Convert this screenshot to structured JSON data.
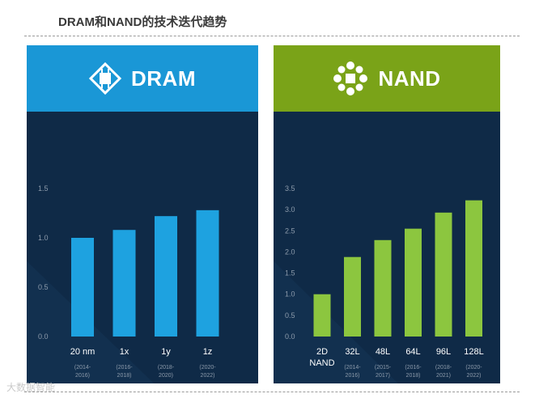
{
  "page": {
    "title": "DRAM和NAND的技术迭代趋势",
    "watermark": "大数据智能"
  },
  "colors": {
    "panel_bg": "#0f2a47",
    "dram_header": "#1a97d6",
    "dram_bar": "#1ea2e0",
    "nand_header": "#7aa318",
    "nand_bar": "#8cc63f",
    "axis_text": "#8d9bab",
    "label_text": "#ffffff"
  },
  "icons": {
    "dram": "dram-chip-icon",
    "nand": "nand-flower-icon"
  },
  "chart_data": [
    {
      "type": "bar",
      "title": "DRAM",
      "categories": [
        "20 nm",
        "1x",
        "1y",
        "1z"
      ],
      "sublabels": [
        [
          "(2014-",
          "2016)"
        ],
        [
          "(2016-",
          "2018)"
        ],
        [
          "(2018-",
          "2020)"
        ],
        [
          "(2020-",
          "2022)"
        ]
      ],
      "values": [
        1.0,
        1.08,
        1.22,
        1.28
      ],
      "ylim": [
        0,
        1.5
      ],
      "yticks": [
        "0.0",
        "0.5",
        "1.0",
        "1.5"
      ],
      "xlabel": "",
      "ylabel": "",
      "grid": false
    },
    {
      "type": "bar",
      "title": "NAND",
      "categories": [
        [
          "2D",
          "NAND"
        ],
        "32L",
        "48L",
        "64L",
        "96L",
        "128L"
      ],
      "sublabels": [
        [],
        [
          "(2014-",
          "2016)"
        ],
        [
          "(2015-",
          "2017)"
        ],
        [
          "(2016-",
          "2018)"
        ],
        [
          "(2018-",
          "2021)"
        ],
        [
          "(2020-",
          "2022)"
        ]
      ],
      "values": [
        1.0,
        1.88,
        2.28,
        2.55,
        2.93,
        3.22
      ],
      "ylim": [
        0,
        3.5
      ],
      "yticks": [
        "0.0",
        "0.5",
        "1.0",
        "1.5",
        "2.0",
        "2.5",
        "3.0",
        "3.5"
      ],
      "xlabel": "",
      "ylabel": "",
      "grid": false
    }
  ]
}
